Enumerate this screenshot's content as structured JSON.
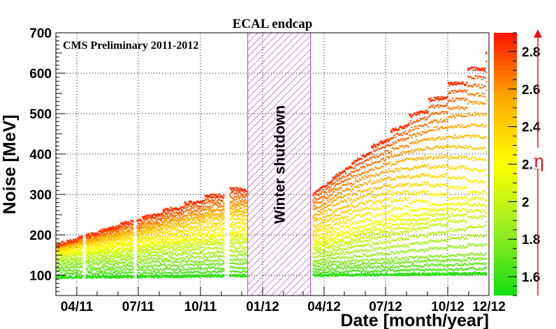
{
  "chart_data": {
    "type": "scatter",
    "title": "ECAL endcap",
    "annotation": "CMS Preliminary 2011-2012",
    "shutdown_label": "Winter shutdown",
    "xlabel": "Date [month/year]",
    "ylabel": "Noise [MeV]",
    "ylim": [
      50,
      700
    ],
    "x_range": [
      "2011-03-01",
      "2012-12-01"
    ],
    "x_ticks": [
      "04/11",
      "07/11",
      "10/11",
      "01/12",
      "04/12",
      "07/12",
      "10/12",
      "12/12"
    ],
    "y_ticks": [
      100,
      200,
      300,
      400,
      500,
      600,
      700
    ],
    "grid": true,
    "shutdown_period": [
      "2011-12-10",
      "2012-03-12"
    ],
    "colorbar": {
      "label": "η",
      "range": [
        1.5,
        2.9
      ],
      "ticks": [
        "1.6",
        "1.8",
        "2",
        "2.2",
        "2.4",
        "2.6",
        "2.8"
      ],
      "colors": [
        "#11dd11",
        "#99ee22",
        "#ffff00",
        "#ffaa00",
        "#ff1100"
      ]
    },
    "series_summary": [
      {
        "eta": 1.6,
        "noise_start_2011": 95,
        "noise_end_2011": 100,
        "noise_start_2012": 100,
        "noise_end_2012": 105
      },
      {
        "eta": 1.8,
        "noise_start_2011": 125,
        "noise_end_2011": 140,
        "noise_start_2012": 130,
        "noise_end_2012": 155
      },
      {
        "eta": 2.0,
        "noise_start_2011": 145,
        "noise_end_2011": 185,
        "noise_start_2012": 160,
        "noise_end_2012": 255
      },
      {
        "eta": 2.2,
        "noise_start_2011": 155,
        "noise_end_2011": 215,
        "noise_start_2012": 185,
        "noise_end_2012": 320
      },
      {
        "eta": 2.4,
        "noise_start_2011": 165,
        "noise_end_2011": 260,
        "noise_start_2012": 220,
        "noise_end_2012": 440
      },
      {
        "eta": 2.6,
        "noise_start_2011": 170,
        "noise_end_2011": 290,
        "noise_start_2012": 260,
        "noise_end_2012": 560
      },
      {
        "eta": 2.8,
        "noise_start_2011": 175,
        "noise_end_2011": 330,
        "noise_start_2012": 300,
        "noise_end_2012": 650
      }
    ]
  }
}
